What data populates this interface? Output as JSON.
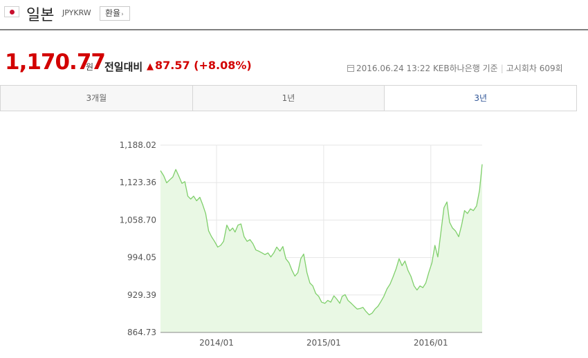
{
  "header": {
    "country": "일본",
    "code": "JPYKRW",
    "button_label": "환율",
    "button_icon": "chevron-right-icon",
    "flag_icon": "japan-flag-icon"
  },
  "quote": {
    "price": "1,170.77",
    "unit": "원",
    "compare_label": "전일대비",
    "change": "87.57 (+8.08%)",
    "change_direction": "up",
    "up_color": "#d20000",
    "date": "2016.06.24 13:22",
    "bank": "KEB하나은행 기준",
    "notice": "고시회차 609회"
  },
  "tabs": [
    {
      "label": "3개월",
      "active": false
    },
    {
      "label": "1년",
      "active": false
    },
    {
      "label": "3년",
      "active": true
    }
  ],
  "chart_data": {
    "type": "area",
    "title": "",
    "xlabel": "",
    "ylabel": "",
    "x_range": [
      "2013-06-24",
      "2016-06-24"
    ],
    "ylim": [
      864.73,
      1188.02
    ],
    "y_ticks": [
      "1,188.02",
      "1,123.36",
      "1,058.70",
      "994.05",
      "929.39",
      "864.73"
    ],
    "y_tick_values": [
      1188.02,
      1123.36,
      1058.7,
      994.05,
      929.39,
      864.73
    ],
    "x_ticks": [
      "2014/01",
      "2015/01",
      "2016/01"
    ],
    "x_tick_dates": [
      "2014-01-01",
      "2015-01-01",
      "2016-01-01"
    ],
    "grid": true,
    "line_color": "#7fcf6b",
    "fill_color": "#e9f8e4",
    "points": [
      [
        "2013-06-24",
        1144
      ],
      [
        "2013-07-05",
        1135
      ],
      [
        "2013-07-15",
        1123
      ],
      [
        "2013-07-25",
        1128
      ],
      [
        "2013-08-05",
        1133
      ],
      [
        "2013-08-15",
        1146
      ],
      [
        "2013-08-25",
        1135
      ],
      [
        "2013-09-05",
        1122
      ],
      [
        "2013-09-15",
        1125
      ],
      [
        "2013-09-25",
        1100
      ],
      [
        "2013-10-05",
        1095
      ],
      [
        "2013-10-15",
        1100
      ],
      [
        "2013-10-25",
        1092
      ],
      [
        "2013-11-05",
        1098
      ],
      [
        "2013-11-15",
        1085
      ],
      [
        "2013-11-25",
        1070
      ],
      [
        "2013-12-05",
        1040
      ],
      [
        "2013-12-15",
        1030
      ],
      [
        "2013-12-25",
        1022
      ],
      [
        "2014-01-05",
        1012
      ],
      [
        "2014-01-15",
        1015
      ],
      [
        "2014-01-25",
        1022
      ],
      [
        "2014-02-05",
        1050
      ],
      [
        "2014-02-15",
        1040
      ],
      [
        "2014-02-25",
        1045
      ],
      [
        "2014-03-05",
        1038
      ],
      [
        "2014-03-15",
        1050
      ],
      [
        "2014-03-25",
        1052
      ],
      [
        "2014-04-05",
        1030
      ],
      [
        "2014-04-15",
        1022
      ],
      [
        "2014-04-25",
        1025
      ],
      [
        "2014-05-05",
        1018
      ],
      [
        "2014-05-15",
        1007
      ],
      [
        "2014-05-25",
        1005
      ],
      [
        "2014-06-05",
        1002
      ],
      [
        "2014-06-15",
        999
      ],
      [
        "2014-06-25",
        1002
      ],
      [
        "2014-07-05",
        995
      ],
      [
        "2014-07-15",
        1002
      ],
      [
        "2014-07-25",
        1012
      ],
      [
        "2014-08-05",
        1005
      ],
      [
        "2014-08-15",
        1013
      ],
      [
        "2014-08-25",
        992
      ],
      [
        "2014-09-05",
        985
      ],
      [
        "2014-09-15",
        972
      ],
      [
        "2014-09-25",
        962
      ],
      [
        "2014-10-05",
        968
      ],
      [
        "2014-10-15",
        992
      ],
      [
        "2014-10-25",
        1000
      ],
      [
        "2014-11-05",
        968
      ],
      [
        "2014-11-15",
        950
      ],
      [
        "2014-11-25",
        945
      ],
      [
        "2014-12-05",
        932
      ],
      [
        "2014-12-15",
        927
      ],
      [
        "2014-12-25",
        917
      ],
      [
        "2015-01-05",
        915
      ],
      [
        "2015-01-15",
        920
      ],
      [
        "2015-01-25",
        917
      ],
      [
        "2015-02-05",
        928
      ],
      [
        "2015-02-15",
        922
      ],
      [
        "2015-02-25",
        915
      ],
      [
        "2015-03-05",
        927
      ],
      [
        "2015-03-15",
        930
      ],
      [
        "2015-03-25",
        920
      ],
      [
        "2015-04-05",
        915
      ],
      [
        "2015-04-15",
        910
      ],
      [
        "2015-04-25",
        905
      ],
      [
        "2015-05-05",
        906
      ],
      [
        "2015-05-15",
        908
      ],
      [
        "2015-05-25",
        901
      ],
      [
        "2015-06-05",
        895
      ],
      [
        "2015-06-15",
        898
      ],
      [
        "2015-06-25",
        905
      ],
      [
        "2015-07-05",
        910
      ],
      [
        "2015-07-15",
        918
      ],
      [
        "2015-07-25",
        927
      ],
      [
        "2015-08-05",
        940
      ],
      [
        "2015-08-15",
        948
      ],
      [
        "2015-08-25",
        960
      ],
      [
        "2015-09-05",
        975
      ],
      [
        "2015-09-15",
        992
      ],
      [
        "2015-09-25",
        980
      ],
      [
        "2015-10-05",
        988
      ],
      [
        "2015-10-15",
        972
      ],
      [
        "2015-10-25",
        962
      ],
      [
        "2015-11-05",
        945
      ],
      [
        "2015-11-15",
        938
      ],
      [
        "2015-11-25",
        945
      ],
      [
        "2015-12-05",
        942
      ],
      [
        "2015-12-15",
        950
      ],
      [
        "2015-12-25",
        968
      ],
      [
        "2016-01-05",
        985
      ],
      [
        "2016-01-15",
        1015
      ],
      [
        "2016-01-25",
        995
      ],
      [
        "2016-02-05",
        1040
      ],
      [
        "2016-02-15",
        1080
      ],
      [
        "2016-02-25",
        1090
      ],
      [
        "2016-03-05",
        1055
      ],
      [
        "2016-03-15",
        1045
      ],
      [
        "2016-03-25",
        1040
      ],
      [
        "2016-04-05",
        1030
      ],
      [
        "2016-04-15",
        1050
      ],
      [
        "2016-04-25",
        1075
      ],
      [
        "2016-05-05",
        1070
      ],
      [
        "2016-05-15",
        1078
      ],
      [
        "2016-05-25",
        1075
      ],
      [
        "2016-06-05",
        1083
      ],
      [
        "2016-06-15",
        1110
      ],
      [
        "2016-06-24",
        1155
      ]
    ]
  }
}
